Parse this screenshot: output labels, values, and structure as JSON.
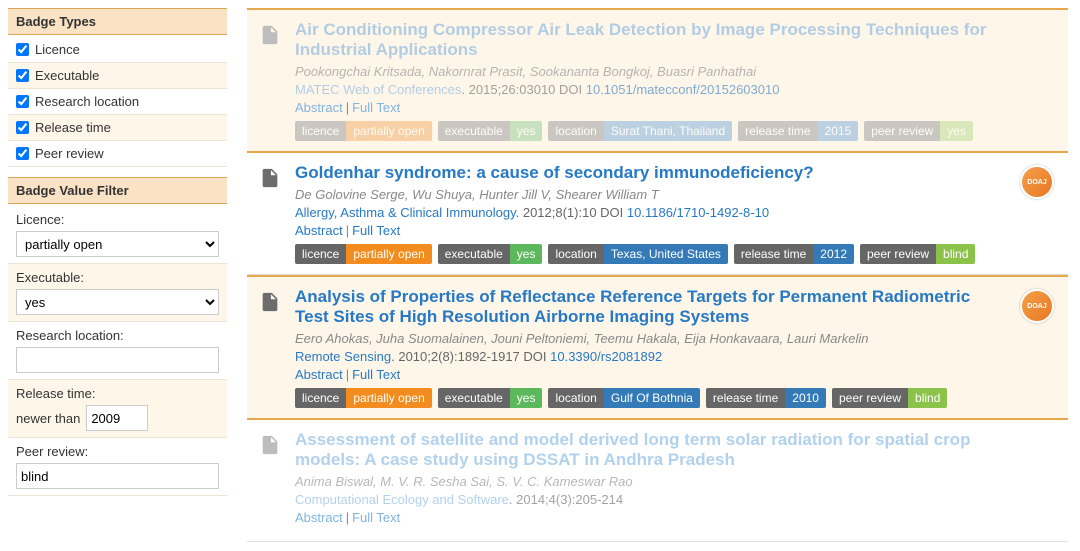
{
  "sidebar": {
    "badge_types_header": "Badge Types",
    "types": [
      {
        "label": "Licence",
        "checked": true
      },
      {
        "label": "Executable",
        "checked": true
      },
      {
        "label": "Research location",
        "checked": true
      },
      {
        "label": "Release time",
        "checked": true
      },
      {
        "label": "Peer review",
        "checked": true
      }
    ],
    "value_filter_header": "Badge Value Filter",
    "licence_label": "Licence:",
    "licence_value": "partially open",
    "executable_label": "Executable:",
    "executable_value": "yes",
    "research_location_label": "Research location:",
    "research_location_value": "",
    "release_time_label": "Release time:",
    "release_time_prefix": "newer than",
    "release_time_value": "2009",
    "peer_review_label": "Peer review:",
    "peer_review_value": "blind"
  },
  "results": [
    {
      "dim": true,
      "hl": true,
      "doaj": false,
      "title": "Air Conditioning Compressor Air Leak Detection by Image Processing Techniques for Industrial Applications",
      "authors": "Pookongchai Kritsada, Nakornrat Prasit, Sookananta Bongkoj, Buasri Panhathai",
      "source": "MATEC Web of Conferences",
      "citation": ". 2015;26:03010 DOI ",
      "doi": "10.1051/matecconf/20152603010",
      "abstract": "Abstract",
      "fulltext": "Full Text",
      "badges": [
        {
          "k": "licence",
          "v": "partially open",
          "kc": "k-licence",
          "vc": "v-licence"
        },
        {
          "k": "executable",
          "v": "yes",
          "kc": "k-exec",
          "vc": "v-exec"
        },
        {
          "k": "location",
          "v": "Surat Thani, Thailand",
          "kc": "k-loc",
          "vc": "v-loc"
        },
        {
          "k": "release time",
          "v": "2015",
          "kc": "k-rel",
          "vc": "v-rel"
        },
        {
          "k": "peer review",
          "v": "yes",
          "kc": "k-peer",
          "vc": "v-peer"
        }
      ]
    },
    {
      "dim": false,
      "hl": false,
      "doaj": true,
      "title": "Goldenhar syndrome: a cause of secondary immunodeficiency?",
      "authors": "De Golovine Serge, Wu Shuya, Hunter Jill V, Shearer William T",
      "source": "Allergy, Asthma & Clinical Immunology",
      "citation": ". 2012;8(1):10 DOI ",
      "doi": "10.1186/1710-1492-8-10",
      "abstract": "Abstract",
      "fulltext": "Full Text",
      "badges": [
        {
          "k": "licence",
          "v": "partially open",
          "kc": "k-licence",
          "vc": "v-licence"
        },
        {
          "k": "executable",
          "v": "yes",
          "kc": "k-exec",
          "vc": "v-exec"
        },
        {
          "k": "location",
          "v": "Texas, United States",
          "kc": "k-loc",
          "vc": "v-loc"
        },
        {
          "k": "release time",
          "v": "2012",
          "kc": "k-rel",
          "vc": "v-rel"
        },
        {
          "k": "peer review",
          "v": "blind",
          "kc": "k-peer",
          "vc": "v-peer blind"
        }
      ]
    },
    {
      "dim": false,
      "hl": true,
      "doaj": true,
      "title": "Analysis of Properties of Reflectance Reference Targets for Permanent Radiometric Test Sites of High Resolution Airborne Imaging Systems",
      "authors": "Eero Ahokas, Juha Suomalainen, Jouni Peltoniemi, Teemu Hakala, Eija Honkavaara, Lauri Markelin",
      "source": "Remote Sensing",
      "citation": ". 2010;2(8):1892-1917 DOI ",
      "doi": "10.3390/rs2081892",
      "abstract": "Abstract",
      "fulltext": "Full Text",
      "badges": [
        {
          "k": "licence",
          "v": "partially open",
          "kc": "k-licence",
          "vc": "v-licence"
        },
        {
          "k": "executable",
          "v": "yes",
          "kc": "k-exec",
          "vc": "v-exec"
        },
        {
          "k": "location",
          "v": "Gulf Of Bothnia",
          "kc": "k-loc",
          "vc": "v-loc"
        },
        {
          "k": "release time",
          "v": "2010",
          "kc": "k-rel",
          "vc": "v-rel"
        },
        {
          "k": "peer review",
          "v": "blind",
          "kc": "k-peer",
          "vc": "v-peer blind"
        }
      ]
    },
    {
      "dim": true,
      "hl": false,
      "doaj": false,
      "title": "Assessment of satellite and model derived long term solar radiation for spatial crop models: A case study using DSSAT in Andhra Pradesh",
      "authors": "Anima Biswal, M. V. R. Sesha Sai, S. V. C. Kameswar Rao",
      "source": "Computational Ecology and Software",
      "citation": ". 2014;4(3):205-214",
      "doi": "",
      "abstract": "Abstract",
      "fulltext": "Full Text",
      "badges": []
    }
  ]
}
